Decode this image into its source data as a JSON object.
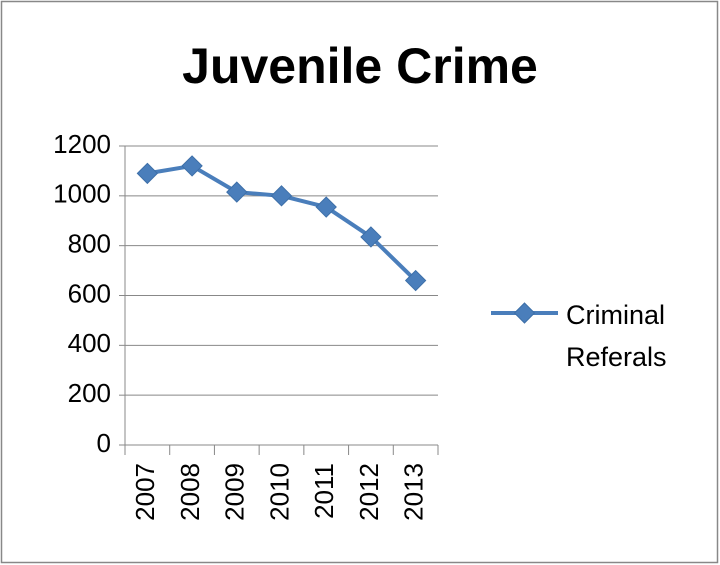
{
  "chart_data": {
    "type": "line",
    "title": "Juvenile Crime",
    "categories": [
      "2007",
      "2008",
      "2009",
      "2010",
      "2011",
      "2012",
      "2013"
    ],
    "series": [
      {
        "name": "Criminal Referals",
        "color": "#4a7ebb",
        "values": [
          1090,
          1120,
          1015,
          1000,
          955,
          835,
          660
        ]
      }
    ],
    "ylim": [
      0,
      1200
    ],
    "yticks": [
      0,
      200,
      400,
      600,
      800,
      1000,
      1200
    ],
    "grid": true,
    "legend": "right"
  }
}
